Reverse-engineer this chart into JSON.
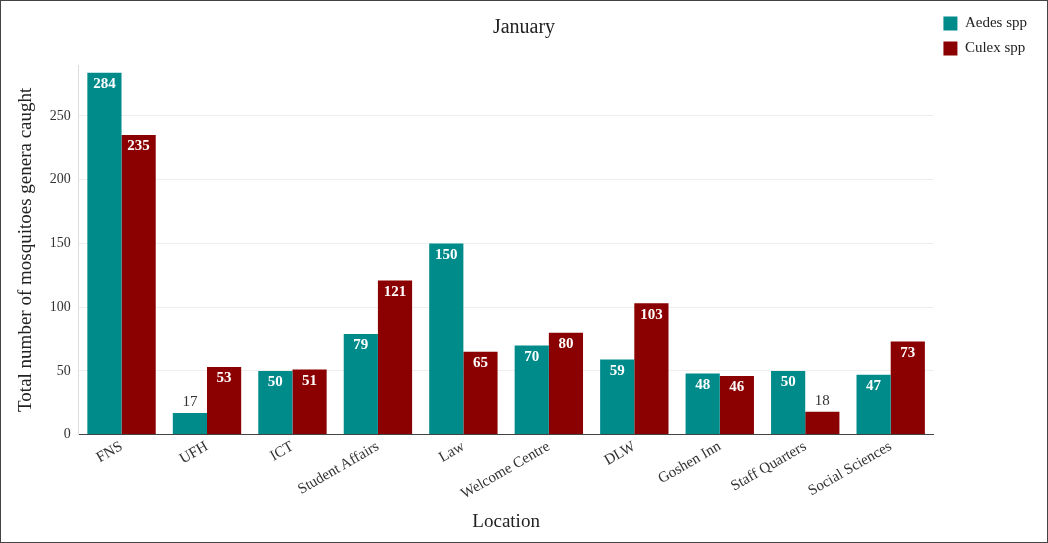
{
  "chart_data": {
    "type": "bar",
    "title": "January",
    "xlabel": "Location",
    "ylabel": "Total number of mosquitoes genera caught",
    "categories": [
      "FNS",
      "UFH",
      "ICT",
      "Student Affairs",
      "Law",
      "Welcome Centre",
      "DLW",
      "Goshen Inn",
      "Staff Quarters",
      "Social Sciences"
    ],
    "series": [
      {
        "name": "Aedes spp",
        "color": "#008b8b",
        "values": [
          284,
          17,
          50,
          79,
          150,
          70,
          59,
          48,
          50,
          47
        ]
      },
      {
        "name": "Culex spp",
        "color": "#8b0000",
        "values": [
          235,
          53,
          51,
          121,
          65,
          80,
          103,
          46,
          18,
          73
        ]
      }
    ],
    "ylim": [
      0,
      290
    ],
    "yticks": [
      0,
      50,
      100,
      150,
      200,
      250
    ],
    "grid": "y",
    "legend": "top right",
    "data_labels": true
  }
}
